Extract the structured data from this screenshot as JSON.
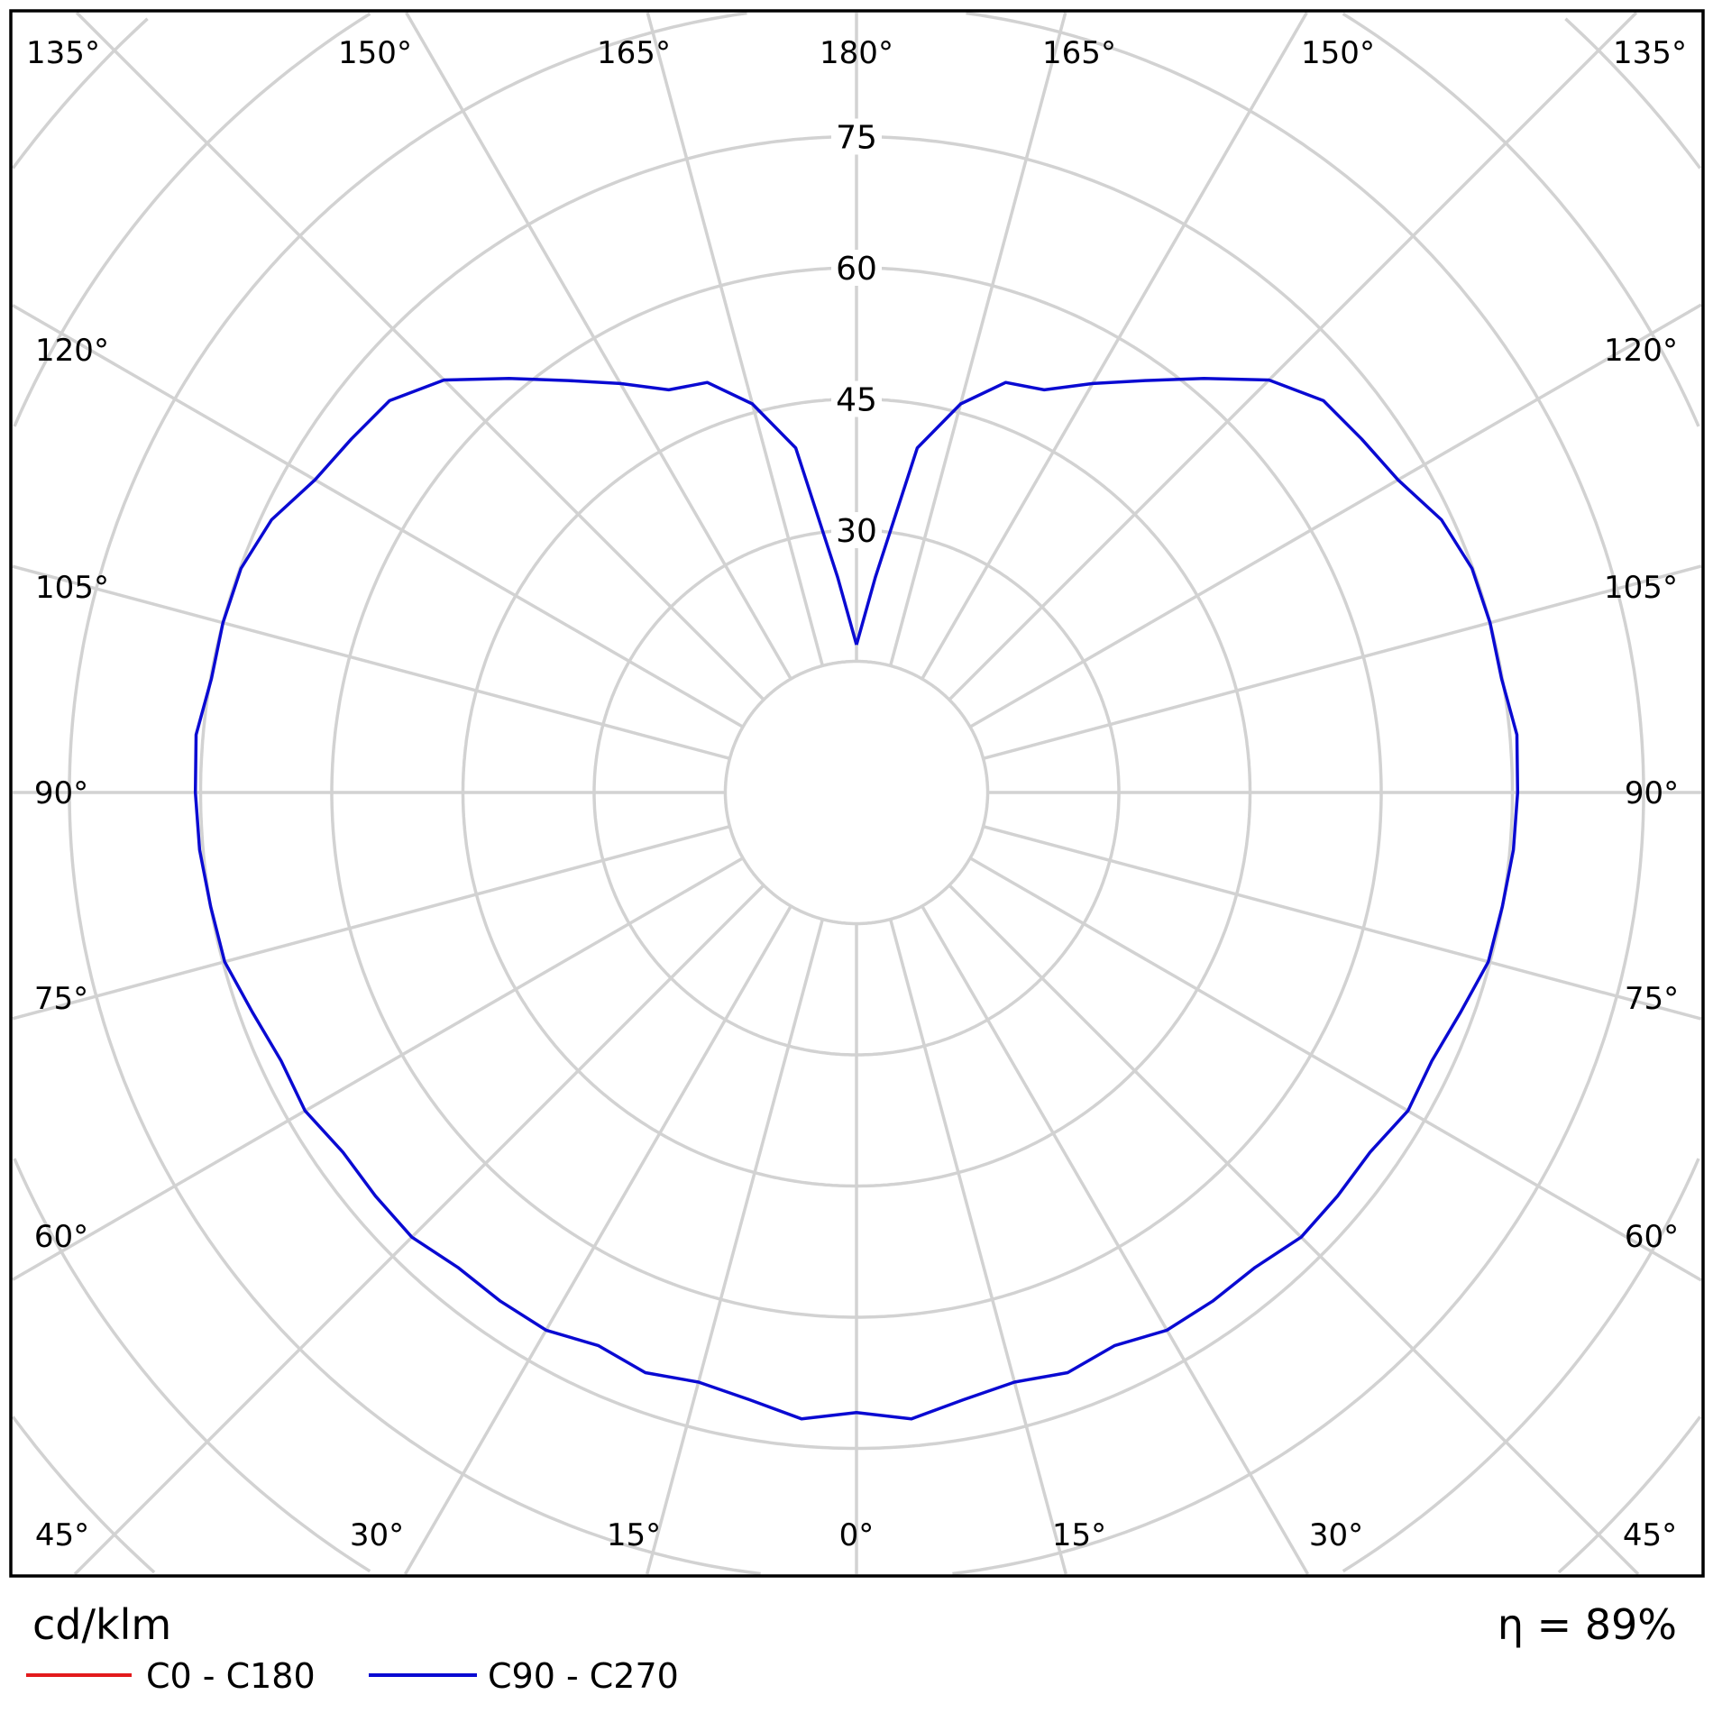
{
  "chart_data": {
    "type": "polar",
    "unit_label": "cd/klm",
    "efficiency_label": "η = 89%",
    "radial_ticks": [
      15,
      30,
      45,
      60,
      75,
      90,
      105,
      120
    ],
    "radial_tick_labels": [
      "75",
      "60",
      "45",
      "30"
    ],
    "angle_step_deg": 15,
    "grid": true,
    "angle_labels": {
      "top": [
        "135°",
        "150°",
        "165°",
        "180°",
        "165°",
        "150°",
        "135°"
      ],
      "left": [
        "120°",
        "105°",
        "90°",
        "75°",
        "60°"
      ],
      "right": [
        "120°",
        "105°",
        "90°",
        "75°",
        "60°"
      ],
      "bottom": [
        "45°",
        "30°",
        "15°",
        "0°",
        "15°",
        "30°",
        "45°"
      ]
    },
    "legend": [
      {
        "name": "C0 - C180",
        "color": "#e31a1c"
      },
      {
        "name": "C90 - C270",
        "color": "#0a0ad2"
      }
    ],
    "legend_placement": "bottom-left",
    "series": [
      {
        "name": "C90 - C270",
        "color": "#0a0ad2",
        "symmetric": true,
        "gamma_deg": [
          0,
          5,
          10,
          15,
          20,
          25,
          30,
          35,
          40,
          45,
          50,
          55,
          60,
          65,
          70,
          75,
          80,
          85,
          90,
          95,
          100,
          105,
          110,
          115,
          120,
          125,
          130,
          135,
          140,
          145,
          150,
          155,
          160,
          165,
          170,
          175,
          180
        ],
        "values": [
          70.9,
          71.9,
          70.5,
          69.8,
          70.6,
          69.8,
          71.0,
          71.0,
          70.9,
          71.9,
          71.8,
          71.7,
          72.8,
          72.6,
          73.5,
          74.8,
          75.0,
          75.4,
          75.6,
          75.8,
          74.9,
          75.0,
          74.9,
          73.8,
          71.5,
          70.5,
          69.7,
          66.7,
          61.8,
          57.5,
          54.0,
          50.8,
          49.9,
          46.0,
          40.0,
          24.7,
          16.9
        ]
      }
    ]
  }
}
